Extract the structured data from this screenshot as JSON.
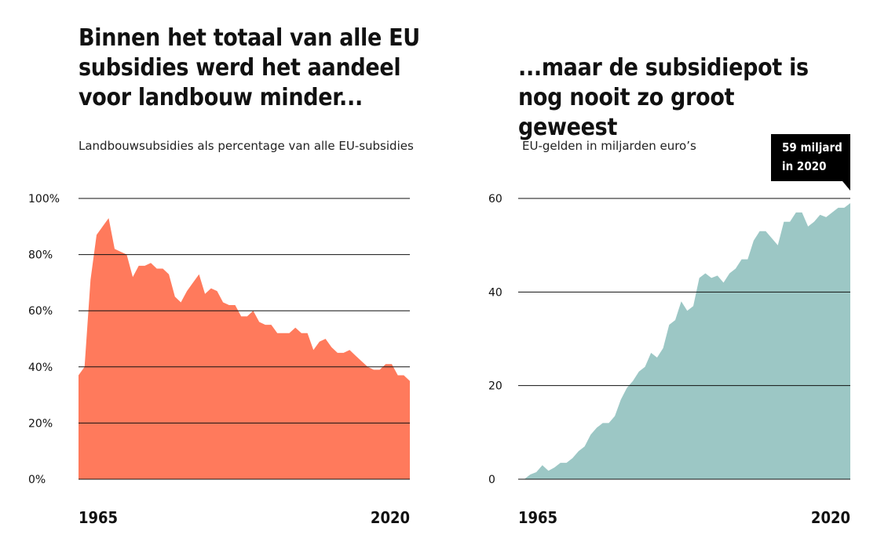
{
  "chart_data": [
    {
      "type": "area",
      "title": "Binnen het totaal van alle EU subsidies werd het aandeel voor landbouw minder...",
      "subtitle": "Landbouwsubsidies als percentage van alle EU-subsidies",
      "color": "#ff7a5c",
      "xlabel": "",
      "ylabel": "",
      "xlim": [
        1965,
        2020
      ],
      "ylim": [
        0,
        100
      ],
      "yticks": [
        0,
        20,
        40,
        60,
        80,
        100
      ],
      "ytick_labels": [
        "0%",
        "20%",
        "40%",
        "60%",
        "80%",
        "100%"
      ],
      "xtick_labels": [
        "1965",
        "2020"
      ],
      "grid": true,
      "x": [
        1965,
        1966,
        1967,
        1968,
        1969,
        1970,
        1971,
        1972,
        1973,
        1974,
        1975,
        1976,
        1977,
        1978,
        1979,
        1980,
        1981,
        1982,
        1983,
        1984,
        1985,
        1986,
        1987,
        1988,
        1989,
        1990,
        1991,
        1992,
        1993,
        1994,
        1995,
        1996,
        1997,
        1998,
        1999,
        2000,
        2001,
        2002,
        2003,
        2004,
        2005,
        2006,
        2007,
        2008,
        2009,
        2010,
        2011,
        2012,
        2013,
        2014,
        2015,
        2016,
        2017,
        2018,
        2019,
        2020
      ],
      "values": [
        37,
        40,
        71,
        87,
        90,
        93,
        82,
        81,
        80,
        72,
        76,
        76,
        77,
        75,
        75,
        73,
        65,
        63,
        67,
        70,
        73,
        66,
        68,
        67,
        63,
        62,
        62,
        58,
        58,
        60,
        56,
        55,
        55,
        52,
        52,
        52,
        54,
        52,
        52,
        46,
        49,
        50,
        47,
        45,
        45,
        46,
        44,
        42,
        40,
        39,
        39,
        41,
        41,
        37,
        37,
        35
      ]
    },
    {
      "type": "area",
      "title": "...maar de subsidiepot is nog nooit zo groot geweest",
      "subtitle": "EU-gelden in miljarden euro’s",
      "color": "#9cc7c5",
      "xlabel": "",
      "ylabel": "",
      "xlim": [
        1965,
        2020
      ],
      "ylim": [
        0,
        60
      ],
      "yticks": [
        0,
        20,
        40,
        60
      ],
      "ytick_labels": [
        "0",
        "20",
        "40",
        "60"
      ],
      "xtick_labels": [
        "1965",
        "2020"
      ],
      "grid": true,
      "x": [
        1965,
        1966,
        1967,
        1968,
        1969,
        1970,
        1971,
        1972,
        1973,
        1974,
        1975,
        1976,
        1977,
        1978,
        1979,
        1980,
        1981,
        1982,
        1983,
        1984,
        1985,
        1986,
        1987,
        1988,
        1989,
        1990,
        1991,
        1992,
        1993,
        1994,
        1995,
        1996,
        1997,
        1998,
        1999,
        2000,
        2001,
        2002,
        2003,
        2004,
        2005,
        2006,
        2007,
        2008,
        2009,
        2010,
        2011,
        2012,
        2013,
        2014,
        2015,
        2016,
        2017,
        2018,
        2019,
        2020
      ],
      "values": [
        0,
        0,
        1,
        1.5,
        3,
        1.8,
        2.5,
        3.5,
        3.5,
        4.5,
        6,
        7,
        9.5,
        11,
        12,
        12,
        13.5,
        17,
        19.5,
        21,
        23,
        24,
        27,
        26,
        28,
        33,
        34,
        38,
        36,
        37,
        43,
        44,
        43,
        43.5,
        42,
        44,
        45,
        47,
        47,
        51,
        53,
        53,
        51.5,
        50,
        55,
        55,
        57,
        57,
        54,
        55,
        56.5,
        56,
        57,
        58,
        58,
        59
      ],
      "callout": {
        "line1": "59 miljard",
        "line2": "in 2020"
      }
    }
  ]
}
